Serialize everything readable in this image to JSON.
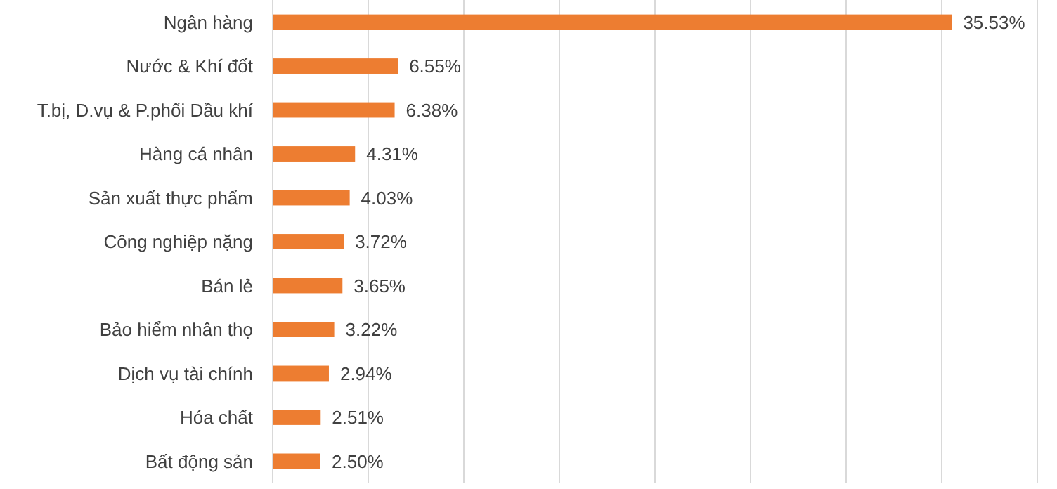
{
  "chart_data": {
    "type": "bar",
    "orientation": "horizontal",
    "categories": [
      "Ngân hàng",
      "Nước & Khí đốt",
      "T.bị, D.vụ & P.phối Dầu khí",
      "Hàng cá nhân",
      "Sản xuất thực phẩm",
      "Công nghiệp nặng",
      "Bán lẻ",
      "Bảo hiểm nhân thọ",
      "Dịch vụ tài chính",
      "Hóa chất",
      "Bất động sản"
    ],
    "values": [
      35.53,
      6.55,
      6.38,
      4.31,
      4.03,
      3.72,
      3.65,
      3.22,
      2.94,
      2.51,
      2.5
    ],
    "value_labels": [
      "35.53%",
      "6.55%",
      "6.38%",
      "4.31%",
      "4.03%",
      "3.72%",
      "3.65%",
      "3.22%",
      "2.94%",
      "2.51%",
      "2.50%"
    ],
    "color": "#ed7d31",
    "xlim": [
      0,
      40
    ],
    "xticks": [
      {
        "value": 0,
        "label": null
      },
      {
        "value": 5,
        "label": null
      },
      {
        "value": 10,
        "label": null
      },
      {
        "value": 15,
        "label": null
      },
      {
        "value": 20,
        "label": null
      },
      {
        "value": 25,
        "label": null
      },
      {
        "value": 30,
        "label": null
      },
      {
        "value": 35,
        "label": null
      },
      {
        "value": 40,
        "label": null
      }
    ],
    "tick_labels": "y",
    "grid": "x"
  }
}
